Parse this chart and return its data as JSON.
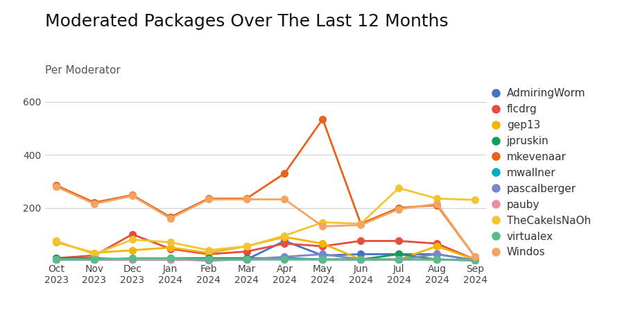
{
  "title": "Moderated Packages Over The Last 12 Months",
  "subtitle": "Per Moderator",
  "months": [
    "Oct\n2023",
    "Nov\n2023",
    "Dec\n2023",
    "Jan\n2024",
    "Feb\n2024",
    "Mar\n2024",
    "Apr\n2024",
    "May\n2024",
    "Jun\n2024",
    "Jul\n2024",
    "Aug\n2024",
    "Sep\n2024"
  ],
  "series": {
    "AdmiringWorm": {
      "color": "#4472C4",
      "values": [
        5,
        5,
        5,
        5,
        2,
        5,
        75,
        20,
        25,
        25,
        25,
        2
      ]
    },
    "flcdrg": {
      "color": "#E74C3C",
      "values": [
        10,
        20,
        100,
        45,
        25,
        35,
        65,
        55,
        75,
        75,
        65,
        5
      ]
    },
    "gep13": {
      "color": "#F4B400",
      "values": [
        70,
        30,
        40,
        50,
        30,
        55,
        90,
        65,
        5,
        5,
        55,
        5
      ]
    },
    "jpruskin": {
      "color": "#0F9D58",
      "values": [
        10,
        10,
        5,
        10,
        10,
        10,
        10,
        5,
        5,
        25,
        5,
        2
      ]
    },
    "mkevenaar": {
      "color": "#E8621A",
      "values": [
        285,
        220,
        248,
        165,
        235,
        235,
        330,
        535,
        140,
        200,
        210,
        15
      ]
    },
    "mwallner": {
      "color": "#00ACC1",
      "values": [
        5,
        5,
        5,
        5,
        5,
        5,
        10,
        5,
        5,
        5,
        5,
        2
      ]
    },
    "pascalberger": {
      "color": "#7986CB",
      "values": [
        5,
        5,
        5,
        5,
        2,
        5,
        15,
        25,
        5,
        5,
        25,
        2
      ]
    },
    "pauby": {
      "color": "#E88FA0",
      "values": [
        5,
        5,
        5,
        5,
        5,
        5,
        5,
        5,
        5,
        5,
        5,
        2
      ]
    },
    "TheCakeIsNaOh": {
      "color": "#F4C430",
      "values": [
        75,
        25,
        80,
        70,
        40,
        55,
        95,
        145,
        140,
        275,
        235,
        230
      ]
    },
    "virtualex": {
      "color": "#57BB8A",
      "values": [
        5,
        5,
        10,
        10,
        5,
        5,
        5,
        5,
        5,
        5,
        5,
        2
      ]
    },
    "Windos": {
      "color": "#F4A460",
      "values": [
        280,
        215,
        245,
        160,
        232,
        232,
        232,
        130,
        135,
        195,
        215,
        15
      ]
    }
  },
  "ylim": [
    0,
    640
  ],
  "yticks": [
    200,
    400,
    600
  ],
  "background_color": "#ffffff",
  "grid_color": "#d0d0d0",
  "title_fontsize": 18,
  "subtitle_fontsize": 11,
  "tick_fontsize": 10,
  "legend_fontsize": 11,
  "marker_size": 8,
  "line_width": 2
}
